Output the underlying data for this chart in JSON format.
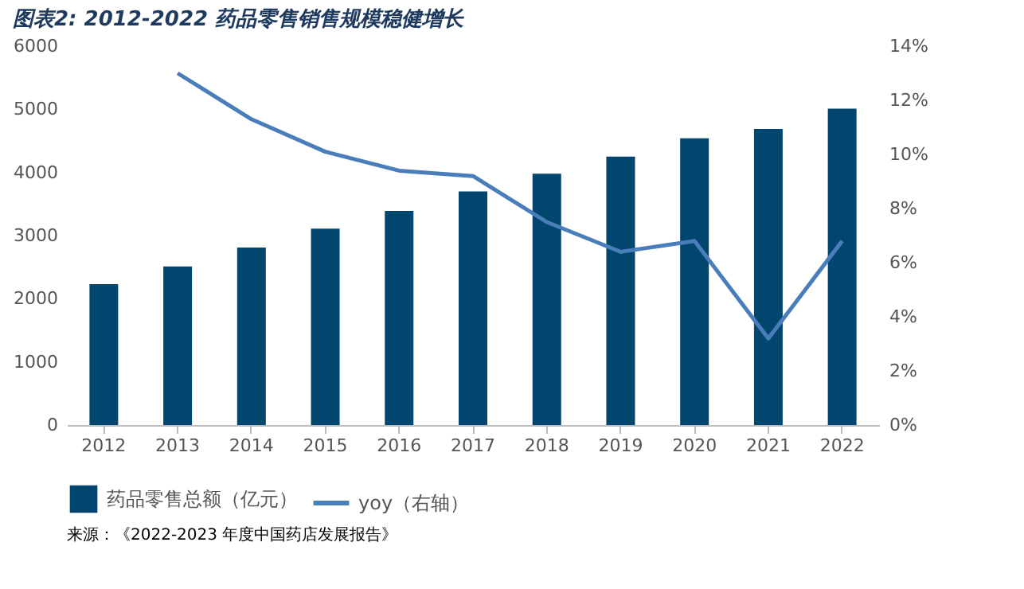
{
  "chart_data": {
    "type": "bar",
    "title": "图表2: 2012-2022 药品零售销售规模稳健增长",
    "categories": [
      "2012",
      "2013",
      "2014",
      "2015",
      "2016",
      "2017",
      "2018",
      "2019",
      "2020",
      "2021",
      "2022"
    ],
    "series": [
      {
        "name": "药品零售总额（亿元）",
        "color": "#00466e",
        "values": [
          2230,
          2510,
          2810,
          3110,
          3390,
          3700,
          3980,
          4250,
          4540,
          4690,
          5010
        ]
      },
      {
        "name": "yoy（右轴）",
        "type": "line",
        "axis": "y2",
        "color": "#4a7ebb",
        "values": [
          null,
          13.0,
          11.3,
          10.1,
          9.4,
          9.2,
          7.5,
          6.4,
          6.8,
          3.2,
          6.8
        ]
      }
    ],
    "ylim": [
      0,
      6000
    ],
    "yticks": [
      0,
      1000,
      2000,
      3000,
      4000,
      5000,
      6000
    ],
    "y2lim": [
      0,
      14
    ],
    "y2ticks": [
      {
        "value": 0,
        "label": "0%"
      },
      {
        "value": 2,
        "label": "2%"
      },
      {
        "value": 4,
        "label": "4%"
      },
      {
        "value": 6,
        "label": "6%"
      },
      {
        "value": 8,
        "label": "8%"
      },
      {
        "value": 10,
        "label": "10%"
      },
      {
        "value": 12,
        "label": "12%"
      },
      {
        "value": 14,
        "label": "14%"
      }
    ],
    "grid": false,
    "legend": "bottom",
    "marker": "none",
    "line_style": "solid",
    "annotations": [
      "来源：《2022-2023 年度中国药店发展报告》"
    ]
  }
}
